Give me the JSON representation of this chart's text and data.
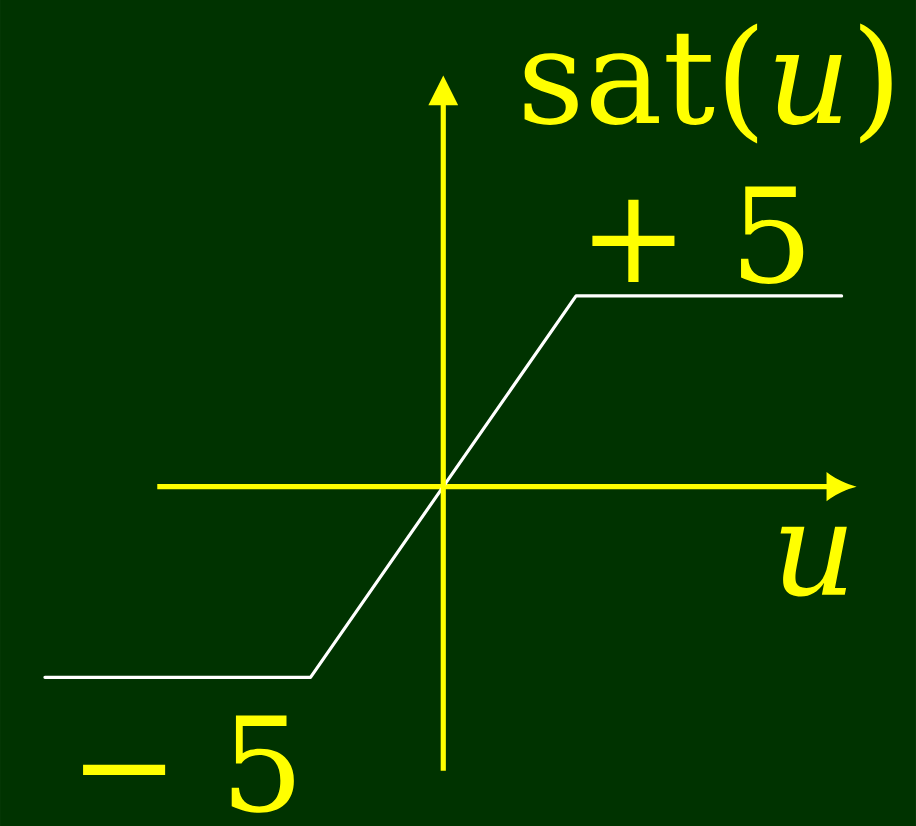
{
  "chart_data": {
    "type": "line",
    "xlabel": "u",
    "ylabel": "sat(*u*)",
    "categories": [
      null,
      null,
      null,
      null
    ],
    "values": [
      -5,
      -5,
      5,
      5
    ],
    "color": "#ffffff",
    "value_labels": [
      "− 5",
      null,
      null,
      "+ 5"
    ]
  }
}
